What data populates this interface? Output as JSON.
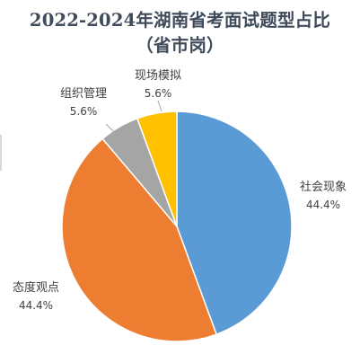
{
  "chart_data": {
    "type": "pie",
    "title": "2022-2024年湖南省考面试题型占比",
    "subtitle": "（省市岗）",
    "slices": [
      {
        "label": "社会现象",
        "value": 44.4,
        "display": "44.4%",
        "color": "#5b9bd5"
      },
      {
        "label": "态度观点",
        "value": 44.4,
        "display": "44.4%",
        "color": "#ed7d31"
      },
      {
        "label": "组织管理",
        "value": 5.6,
        "display": "5.6%",
        "color": "#a5a5a5"
      },
      {
        "label": "现场模拟",
        "value": 5.6,
        "display": "5.6%",
        "color": "#ffc000"
      }
    ]
  }
}
